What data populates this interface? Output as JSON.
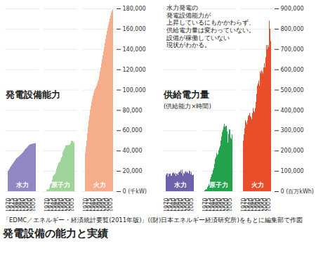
{
  "title": "発電設備の能力と実績",
  "caption": "「EDMC／エネルギー・経済統計要覧(2011年版)」((財)日本エネルギー経済研究所)をもとに編集部で作図",
  "chart_data": [
    {
      "type": "bar",
      "title": "発電設備能力",
      "x": [
        1970,
        1971,
        1972,
        1973,
        1974,
        1975,
        1976,
        1977,
        1978,
        1979,
        1980,
        1981,
        1982,
        1983,
        1984,
        1985,
        1986,
        1987,
        1988,
        1989,
        1990,
        1991,
        1992,
        1993,
        1994,
        1995,
        1996,
        1997,
        1998,
        1999,
        2000,
        2001,
        2002,
        2003,
        2004,
        2005,
        2006,
        2007,
        2008,
        2009
      ],
      "xticks": [
        1970,
        1975,
        1980,
        1985,
        1990,
        1995,
        2000,
        2005
      ],
      "ylim": [
        0,
        180000
      ],
      "yticks": [
        {
          "value": 0,
          "label": "0 (千kW)"
        },
        {
          "value": 20000,
          "label": "20,000"
        },
        {
          "value": 40000,
          "label": "40,000"
        },
        {
          "value": 60000,
          "label": "60,000"
        },
        {
          "value": 80000,
          "label": "80,000"
        },
        {
          "value": 100000,
          "label": "100,000"
        },
        {
          "value": 120000,
          "label": "120,000"
        },
        {
          "value": 140000,
          "label": "140,000"
        },
        {
          "value": 160000,
          "label": "160,000"
        },
        {
          "value": 180000,
          "label": "180,000"
        }
      ],
      "grid": true,
      "series": [
        {
          "name": "水力",
          "color": "#8f88c2",
          "values": [
            20000,
            21000,
            22000,
            23500,
            24500,
            25500,
            26500,
            27500,
            28500,
            29500,
            30500,
            31500,
            32500,
            33000,
            33500,
            34000,
            34700,
            35300,
            36000,
            36700,
            37500,
            38200,
            39000,
            40000,
            41000,
            42000,
            42500,
            43200,
            44000,
            44800,
            45500,
            46000,
            46300,
            46500,
            46600,
            46800,
            47000,
            47200,
            47300,
            47400
          ]
        },
        {
          "name": "原子力",
          "color": "#9fd49a",
          "values": [
            1300,
            1800,
            1800,
            2300,
            3900,
            6600,
            7400,
            8000,
            11500,
            14900,
            15500,
            16500,
            17200,
            19000,
            22000,
            24500,
            25800,
            28000,
            28700,
            29300,
            31500,
            33300,
            34200,
            38500,
            40400,
            41400,
            42700,
            45200,
            45200,
            45200,
            45200,
            45700,
            45700,
            45700,
            47100,
            49600,
            49600,
            49500,
            48000,
            48800
          ]
        },
        {
          "name": "火力",
          "color": "#f5ad8c",
          "values": [
            38000,
            44000,
            50000,
            57000,
            64000,
            70000,
            75000,
            80000,
            84000,
            88000,
            91000,
            94000,
            97000,
            99000,
            101000,
            102000,
            104000,
            106000,
            108000,
            110000,
            114000,
            118000,
            122000,
            126000,
            130000,
            134000,
            138000,
            142000,
            146000,
            150000,
            154000,
            158000,
            161000,
            164000,
            167000,
            170000,
            173000,
            176000,
            178000,
            179000
          ]
        }
      ]
    },
    {
      "type": "bar",
      "title": "供給電力量",
      "subtitle": "(供給能力×時間)",
      "annotations": [
        "水力発電の\n発電設備能力が\n上昇しているにもかかわらず、\n供給電力量は変わっていない。\n設備が稼働していない\n現状がわかる。"
      ],
      "x": [
        1970,
        1971,
        1972,
        1973,
        1974,
        1975,
        1976,
        1977,
        1978,
        1979,
        1980,
        1981,
        1982,
        1983,
        1984,
        1985,
        1986,
        1987,
        1988,
        1989,
        1990,
        1991,
        1992,
        1993,
        1994,
        1995,
        1996,
        1997,
        1998,
        1999,
        2000,
        2001,
        2002,
        2003,
        2004,
        2005,
        2006,
        2007,
        2008,
        2009
      ],
      "xticks": [
        1970,
        1975,
        1980,
        1985,
        1990,
        1995,
        2000,
        2005
      ],
      "ylim": [
        0,
        900000
      ],
      "yticks": [
        {
          "value": 0,
          "label": "0 (百万kWh)"
        },
        {
          "value": 100000,
          "label": "100,000"
        },
        {
          "value": 200000,
          "label": "200,000"
        },
        {
          "value": 300000,
          "label": "300,000"
        },
        {
          "value": 400000,
          "label": "400,000"
        },
        {
          "value": 500000,
          "label": "500,000"
        },
        {
          "value": 600000,
          "label": "600,000"
        },
        {
          "value": 700000,
          "label": "700,000"
        },
        {
          "value": 800000,
          "label": "800,000"
        },
        {
          "value": 900000,
          "label": "900,000"
        }
      ],
      "grid": true,
      "series": [
        {
          "name": "水力",
          "color": "#6e62aa",
          "values": [
            80000,
            86000,
            88000,
            72000,
            86000,
            85000,
            88000,
            76000,
            77000,
            88000,
            92000,
            91000,
            84000,
            90000,
            75000,
            87000,
            86000,
            80000,
            93000,
            96000,
            95000,
            104000,
            89000,
            106000,
            76000,
            91000,
            86000,
            95000,
            99000,
            92000,
            97000,
            91000,
            88000,
            102000,
            98000,
            84000,
            95000,
            80000,
            80000,
            82000
          ]
        },
        {
          "name": "原子力",
          "color": "#22a34c",
          "values": [
            4600,
            8000,
            9500,
            9700,
            19700,
            25100,
            34300,
            28000,
            59300,
            70000,
            82600,
            87800,
            103900,
            114000,
            134300,
            159600,
            168000,
            187800,
            178200,
            182900,
            202300,
            213500,
            223300,
            249300,
            269200,
            291300,
            302500,
            319100,
            332300,
            316500,
            322000,
            321900,
            295100,
            240000,
            282400,
            304800,
            303400,
            263800,
            258100,
            279800
          ]
        },
        {
          "name": "火力",
          "color": "#e94e2b",
          "values": [
            250000,
            280000,
            310000,
            350000,
            340000,
            330000,
            350000,
            370000,
            375000,
            385000,
            370000,
            365000,
            355000,
            385000,
            410000,
            395000,
            390000,
            410000,
            440000,
            480000,
            520000,
            530000,
            545000,
            520000,
            590000,
            580000,
            595000,
            590000,
            580000,
            610000,
            630000,
            610000,
            660000,
            720000,
            700000,
            720000,
            710000,
            840000,
            800000,
            740000
          ]
        }
      ]
    }
  ]
}
